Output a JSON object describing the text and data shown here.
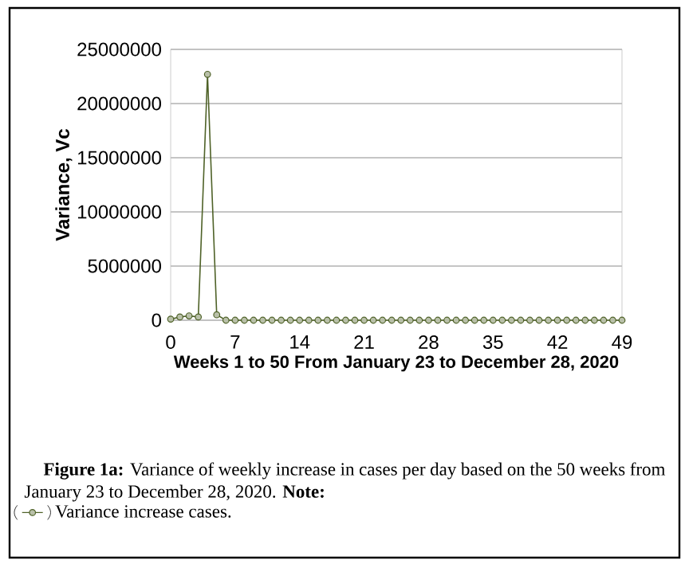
{
  "chart_data": {
    "type": "line",
    "xlabel": "Weeks 1 to 50 From January 23 to December 28, 2020",
    "ylabel": "Variance, Vc",
    "annotations": [
      "**Figure 1a:** Variance of weekly increase in cases per day based on the 50 weeks from January 23 to December 28, 2020. **Note:**"
    ],
    "x": [
      0,
      1,
      2,
      3,
      4,
      5,
      6,
      7,
      8,
      9,
      10,
      11,
      12,
      13,
      14,
      15,
      16,
      17,
      18,
      19,
      20,
      21,
      22,
      23,
      24,
      25,
      26,
      27,
      28,
      29,
      30,
      31,
      32,
      33,
      34,
      35,
      36,
      37,
      38,
      39,
      40,
      41,
      42,
      43,
      44,
      45,
      46,
      47,
      48,
      49
    ],
    "series": [
      {
        "name": "Variance increase cases.",
        "color": "#4f6228",
        "values": [
          100000,
          300000,
          400000,
          300000,
          22700000,
          500000,
          0,
          0,
          0,
          0,
          0,
          0,
          0,
          0,
          0,
          0,
          0,
          0,
          0,
          0,
          0,
          0,
          0,
          0,
          0,
          0,
          0,
          0,
          0,
          0,
          0,
          0,
          0,
          0,
          0,
          0,
          0,
          0,
          0,
          0,
          0,
          0,
          0,
          0,
          0,
          0,
          0,
          0,
          0,
          0
        ]
      }
    ],
    "xlim": [
      0,
      49
    ],
    "xticks": [
      0,
      7,
      14,
      21,
      28,
      35,
      42,
      49
    ],
    "ylim": [
      0,
      25000000
    ],
    "yticks": [
      0,
      5000000,
      10000000,
      15000000,
      20000000,
      25000000
    ],
    "grid": "y",
    "legend": "bottom",
    "marker": "circle",
    "line_style": "solid"
  }
}
